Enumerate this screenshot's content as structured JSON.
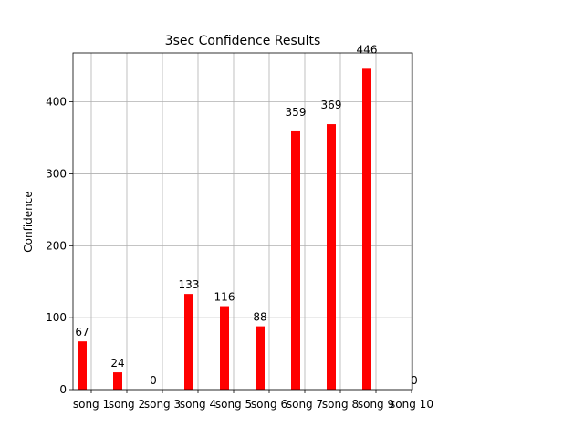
{
  "chart_data": {
    "type": "bar",
    "title": "3sec Confidence Results",
    "xlabel": "",
    "ylabel": "Confidence",
    "categories": [
      "song 1",
      "song 2",
      "song 3",
      "song 4",
      "song 5",
      "song 6",
      "song 7",
      "song 8",
      "song 9",
      "song 10"
    ],
    "values": [
      67,
      24,
      0,
      133,
      116,
      88,
      359,
      369,
      446,
      0
    ],
    "yticks": [
      0,
      100,
      200,
      300,
      400
    ],
    "ylim": [
      0,
      468
    ],
    "bar_color": "#ff0000",
    "grid": true,
    "legend": "none"
  }
}
